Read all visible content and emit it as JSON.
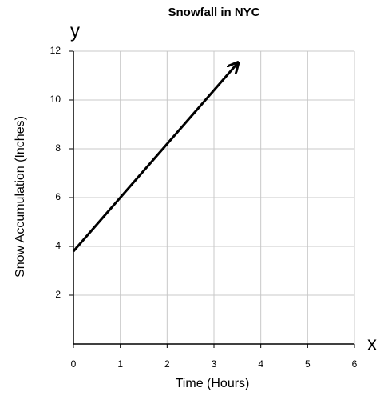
{
  "chart_data": {
    "type": "line",
    "title": "Snowfall in NYC",
    "xlabel": "Time (Hours)",
    "ylabel": "Snow Accumulation (Inches)",
    "x_axis_symbol": "x",
    "y_axis_symbol": "y",
    "x": [
      0,
      3.5
    ],
    "series": [
      {
        "name": "Snowfall",
        "color": "#000000",
        "values": [
          3.8,
          11.5
        ]
      }
    ],
    "xlim": [
      0,
      6
    ],
    "ylim": [
      0,
      12
    ],
    "xticks": [
      0,
      1,
      2,
      3,
      4,
      5,
      6
    ],
    "yticks": [
      2,
      4,
      6,
      8,
      10,
      12
    ],
    "grid": true
  }
}
